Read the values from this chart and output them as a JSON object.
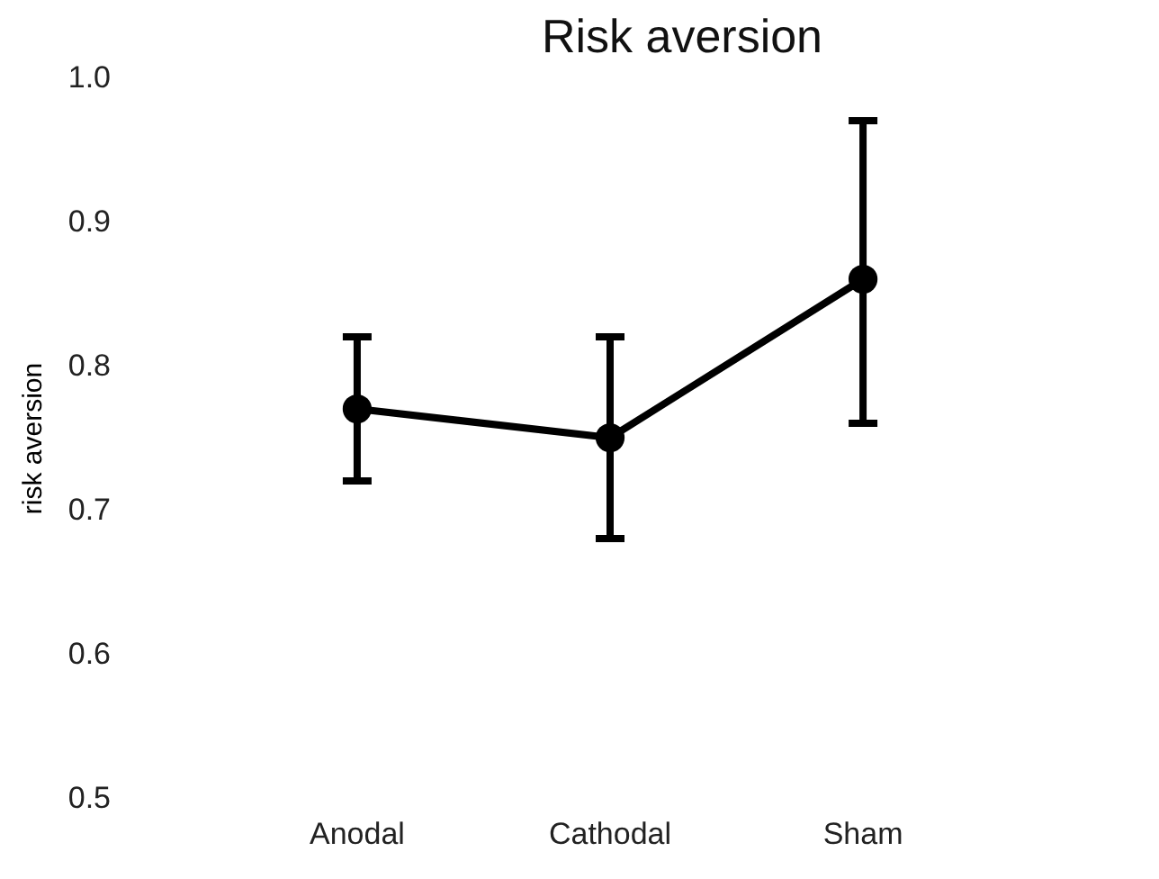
{
  "chart_data": {
    "type": "line",
    "title": "Risk aversion",
    "ylabel": "risk aversion",
    "categories": [
      "Anodal",
      "Cathodal",
      "Sham"
    ],
    "series": [
      {
        "color": "#000000",
        "values": [
          0.77,
          0.75,
          0.86
        ],
        "errors": [
          [
            0.72,
            0.82
          ],
          [
            0.68,
            0.82
          ],
          [
            0.76,
            0.97
          ]
        ]
      }
    ],
    "ylim": [
      0.5,
      1.0
    ],
    "yticks": [
      {
        "value": 0.5,
        "label": "0.5"
      },
      {
        "value": 0.6,
        "label": "0.6"
      },
      {
        "value": 0.7,
        "label": "0.7"
      },
      {
        "value": 0.8,
        "label": "0.8"
      },
      {
        "value": 0.9,
        "label": "0.9"
      },
      {
        "value": 1.0,
        "label": "1.0"
      }
    ],
    "marker": "circle",
    "line_style": "solid"
  }
}
